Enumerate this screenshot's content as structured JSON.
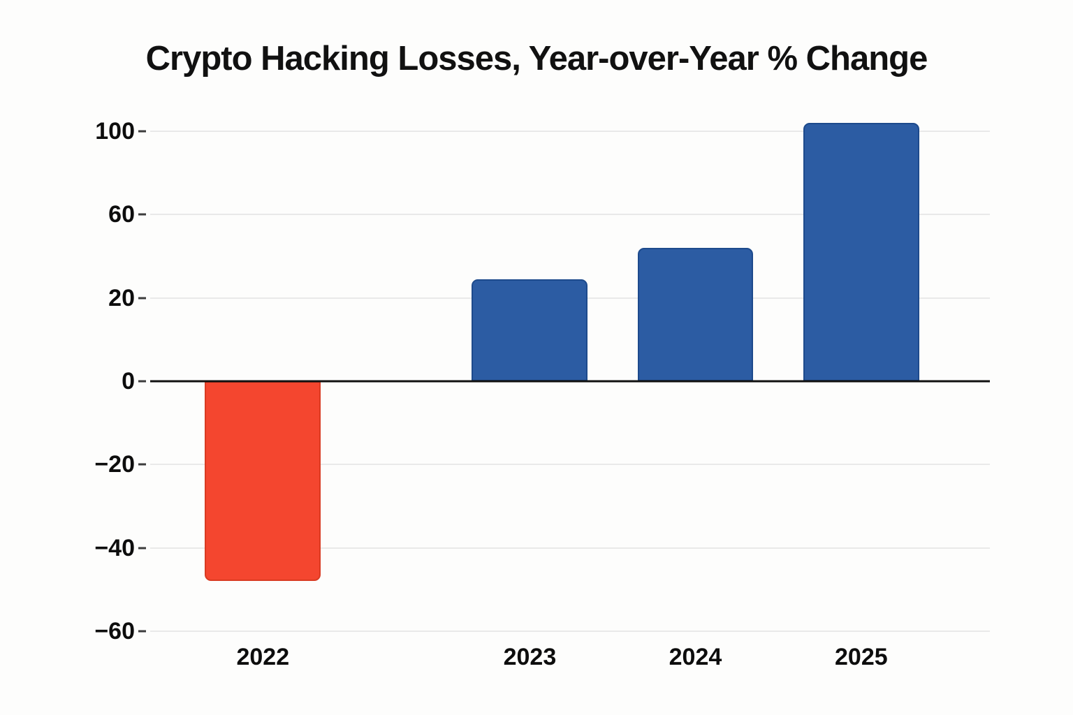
{
  "page": {
    "background": "#fdfdfc"
  },
  "chart_data": {
    "type": "bar",
    "title": "Crypto Hacking Losses, Year-over-Year % Change",
    "categories": [
      "2022",
      "2023",
      "2024",
      "2025"
    ],
    "values": [
      -48,
      29,
      44,
      104
    ],
    "unit": "%",
    "xlabel": "",
    "ylabel": "",
    "yticks": [
      100,
      60,
      20,
      0,
      -20,
      -40,
      -60
    ],
    "ytick_labels": [
      "100",
      "60",
      "20",
      "0",
      "−20",
      "−40",
      "−60"
    ],
    "grid": true,
    "legend": false,
    "layout": {
      "ytick_spacing": "uniform",
      "bar_width_frac": 0.138,
      "bar_corner_radius_px": 9
    },
    "bars": [
      {
        "year": "2022",
        "value": -48,
        "color": "#f4462f",
        "border_color": "#d93b22",
        "center_frac": 0.1342
      },
      {
        "year": "2023",
        "value": 29,
        "color": "#2c5ca3",
        "border_color": "#1d4a8c",
        "center_frac": 0.4521
      },
      {
        "year": "2024",
        "value": 44,
        "color": "#2c5ca3",
        "border_color": "#1d4a8c",
        "center_frac": 0.6493
      },
      {
        "year": "2025",
        "value": 104,
        "color": "#2c5ca3",
        "border_color": "#1d4a8c",
        "center_frac": 0.8468
      }
    ],
    "colors": {
      "negative_bar": "#f4462f",
      "positive_bar": "#2c5ca3",
      "gridline": "#e9e9e9",
      "axis_line": "#111111",
      "text": "#0d0d0d"
    }
  }
}
